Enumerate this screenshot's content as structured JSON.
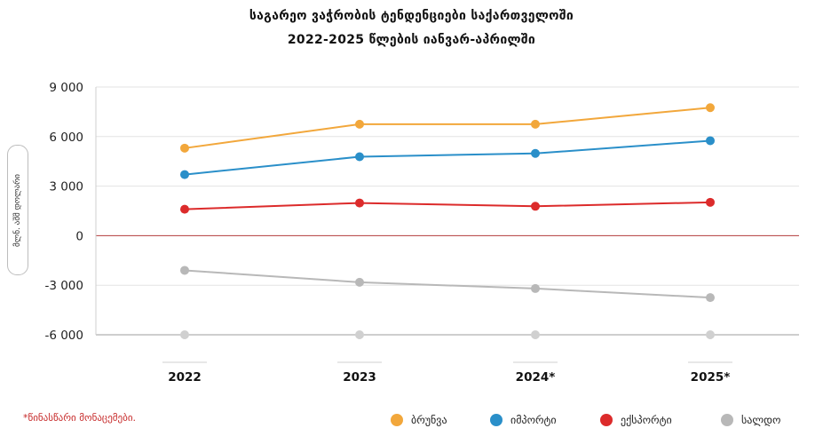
{
  "title_line1": "საგარეო ვაჭრობის ტენდენციები საქართველოში",
  "title_line2": "2022-2025 წლების იანვარ-აპრილში",
  "ylabel": "მლნ. აშშ დოლარი",
  "footnote": "*წინასწარი მონაცემები.",
  "colors": {
    "turnover": "#f2a73b",
    "imports": "#2a8fc9",
    "exports": "#dc2b2b",
    "balance": "#b8b8b8",
    "zero_line": "#b33a3a",
    "grid": "#e3e3e3"
  },
  "chart_data": {
    "type": "line",
    "categories": [
      "2022",
      "2023",
      "2024*",
      "2025*"
    ],
    "y_ticks": [
      "9 000",
      "6 000",
      "3 000",
      "0",
      "-3 000",
      "-6 000"
    ],
    "ylim": [
      -6000,
      9000
    ],
    "grid": true,
    "legend_position": "bottom-right",
    "series": [
      {
        "name": "ბრუნვა",
        "color_key": "turnover",
        "values": [
          5300,
          6750,
          6750,
          7750
        ]
      },
      {
        "name": "იმპორტი",
        "color_key": "imports",
        "values": [
          3700,
          4780,
          4980,
          5750
        ]
      },
      {
        "name": "ექსპორტი",
        "color_key": "exports",
        "values": [
          1600,
          1980,
          1780,
          2020
        ]
      },
      {
        "name": "სალდო",
        "color_key": "balance",
        "values": [
          -2100,
          -2820,
          -3200,
          -3750
        ]
      }
    ]
  }
}
